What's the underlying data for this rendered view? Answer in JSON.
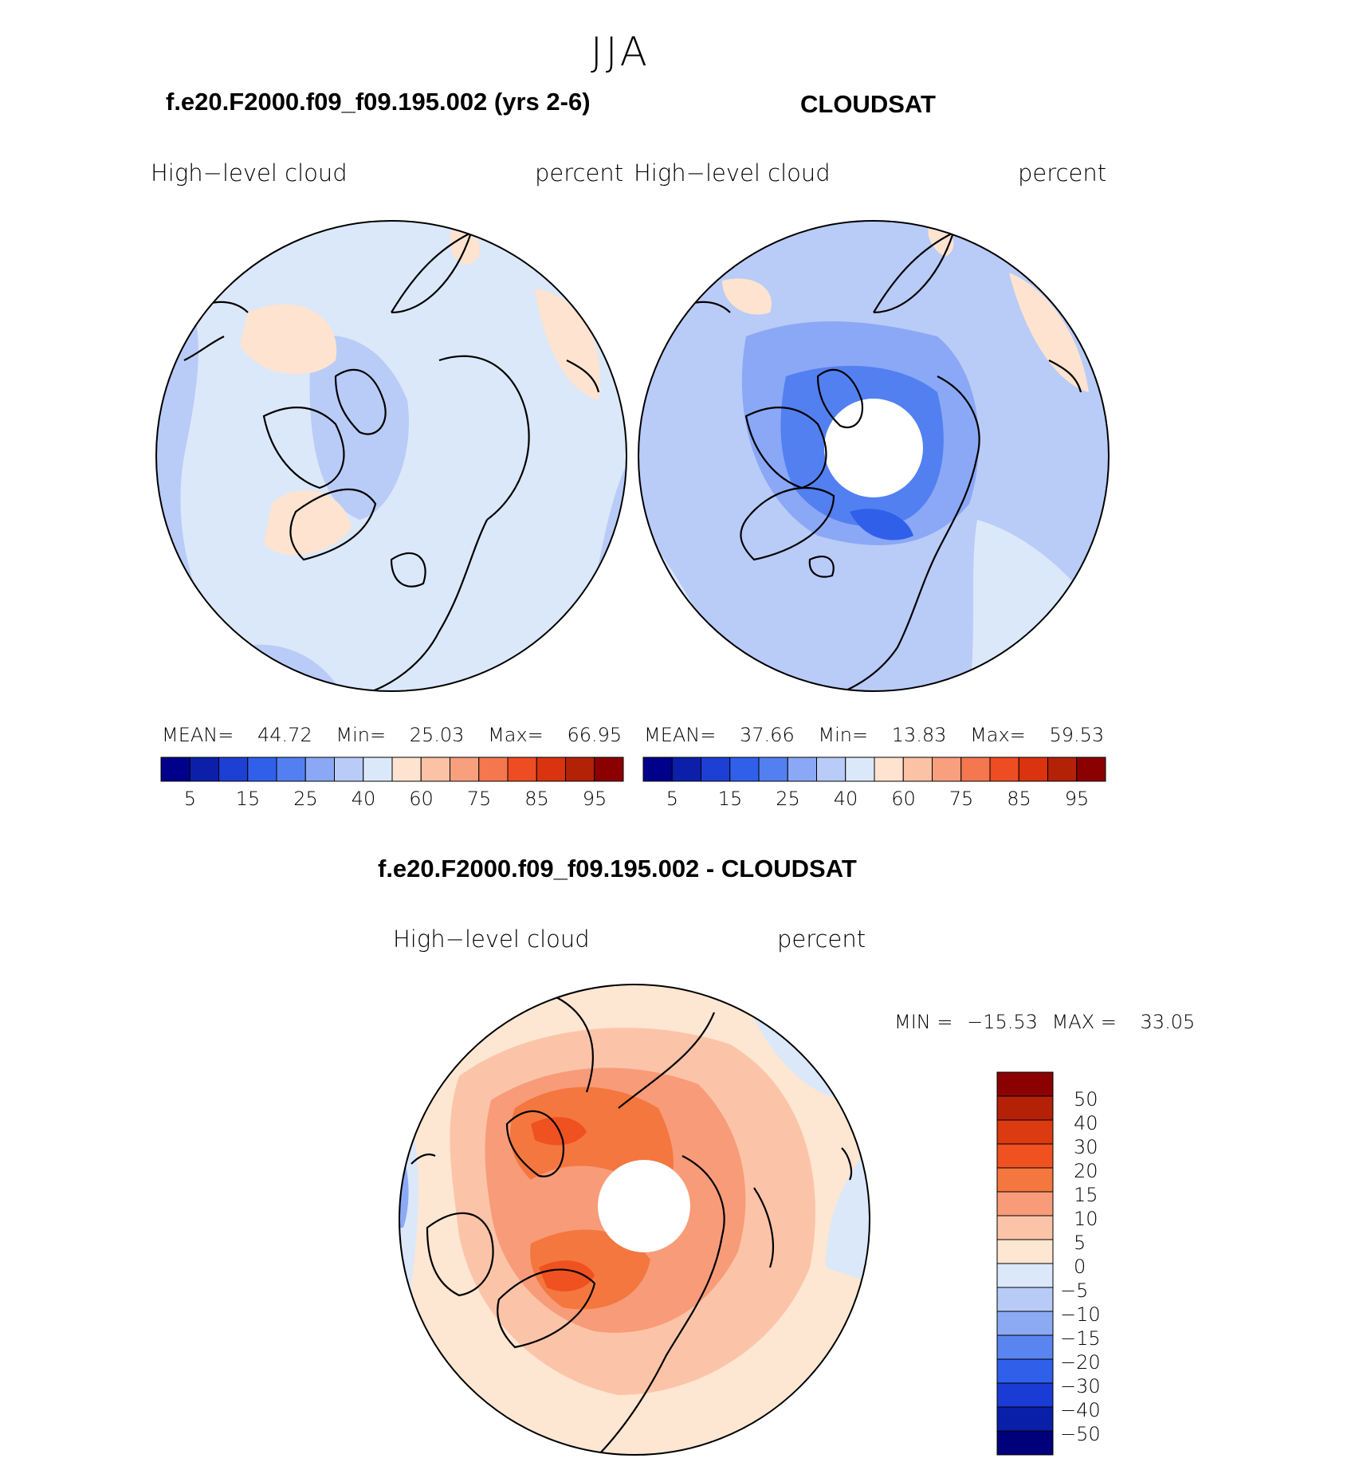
{
  "figure": {
    "season": "JJA"
  },
  "panels": {
    "model": {
      "title": "f.e20.F2000.f09_f09.195.002 (yrs 2-6)",
      "left_label": "High−level  cloud",
      "right_label": "percent",
      "stats": {
        "mean_label": "MEAN=",
        "mean": "44.72",
        "min_label": "Min=",
        "min": "25.03",
        "max_label": "Max=",
        "max": "66.95"
      }
    },
    "obs": {
      "title": "CLOUDSAT",
      "left_label": "High−level  cloud",
      "right_label": "percent",
      "stats": {
        "mean_label": "MEAN=",
        "mean": "37.66",
        "min_label": "Min=",
        "min": "13.83",
        "max_label": "Max=",
        "max": "59.53"
      }
    },
    "diff": {
      "title": "f.e20.F2000.f09_f09.195.002 - CLOUDSAT",
      "left_label": "High−level  cloud",
      "right_label": "percent",
      "stats": {
        "min_label": "MIN =",
        "min": "−15.53",
        "max_label": "MAX =",
        "max": "33.05"
      }
    }
  },
  "colorbars": {
    "field": {
      "colors": [
        "#00008b",
        "#0c1fa8",
        "#1d3fd4",
        "#3060ea",
        "#5380f0",
        "#8aa8f5",
        "#b9cbf7",
        "#dbe8fa",
        "#fde3d0",
        "#fcc2a6",
        "#f89f7e",
        "#f4774f",
        "#ee4c23",
        "#d9330f",
        "#b32107",
        "#8b0000"
      ],
      "tick_labels": [
        "5",
        "15",
        "25",
        "40",
        "60",
        "75",
        "85",
        "95"
      ]
    },
    "diff": {
      "colors": [
        "#00007a",
        "#0a1fa8",
        "#1a3bd6",
        "#3060ea",
        "#5a85f0",
        "#8caaf4",
        "#b8cbf6",
        "#dbe8fa",
        "#fde6d2",
        "#fbc4a8",
        "#f89b79",
        "#f4773f",
        "#ef5120",
        "#dc3a10",
        "#b32107",
        "#8b0000"
      ],
      "tick_labels": [
        "50",
        "40",
        "30",
        "20",
        "15",
        "10",
        "5",
        "0",
        "−5",
        "−10",
        "−15",
        "−20",
        "−30",
        "−40",
        "−50"
      ]
    }
  }
}
